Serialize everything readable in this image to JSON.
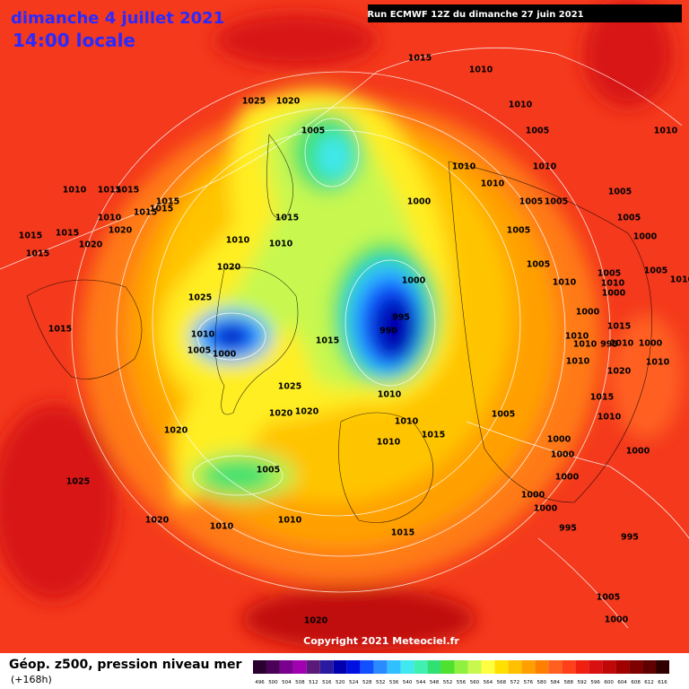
{
  "header": {
    "title": "dimanche 4 juillet 2021",
    "subtitle": "14:00 locale",
    "run": "Run ECMWF 12Z du dimanche 27 juin 2021"
  },
  "map": {
    "pressure_labels": [
      "1015",
      "1010",
      "1025",
      "1020",
      "1010",
      "1005",
      "1005",
      "1010",
      "1010",
      "1010",
      "1010",
      "1015",
      "1015",
      "1010",
      "1005",
      "1015",
      "1015",
      "1000",
      "1005",
      "1005",
      "1010",
      "1015",
      "1015",
      "1005",
      "1015",
      "1020",
      "1015",
      "1010",
      "1010",
      "1005",
      "1000",
      "1020",
      "1015",
      "1005",
      "1020",
      "1005",
      "1005",
      "1000",
      "1010",
      "1025",
      "995",
      "990",
      "1000",
      "1015",
      "1010",
      "1015",
      "1005",
      "1000",
      "1010",
      "1025",
      "1015",
      "1020",
      "1020",
      "1010",
      "1015",
      "1005",
      "1010",
      "1020",
      "1010",
      "1000",
      "1000",
      "1000",
      "1005",
      "1000",
      "1025",
      "1000",
      "1000",
      "1020",
      "1010",
      "1010",
      "995",
      "1015",
      "995",
      "1005",
      "1000",
      "1020",
      "1010",
      "1010",
      "1015",
      "995",
      "1010",
      "1000",
      "1010",
      "1020",
      "1010",
      "1010",
      "1000",
      "1010"
    ]
  },
  "footer": {
    "copyright": "Copyright 2021 Meteociel.fr",
    "legend_title": "Géop. z500, pression niveau mer",
    "lead": "(+168h)",
    "scale": {
      "values": [
        496,
        500,
        504,
        508,
        512,
        516,
        520,
        524,
        528,
        532,
        536,
        540,
        544,
        548,
        552,
        556,
        560,
        564,
        568,
        572,
        576,
        580,
        584,
        588,
        592,
        596,
        600,
        604,
        608,
        612,
        616
      ],
      "colors": [
        "#2a0030",
        "#4b0057",
        "#7a0090",
        "#a000b0",
        "#5a1a7a",
        "#2a1aa0",
        "#0000b0",
        "#0010e0",
        "#1050ff",
        "#2a8aff",
        "#30c0ff",
        "#40e8f0",
        "#40f0b0",
        "#30e070",
        "#50e030",
        "#90f040",
        "#c8f850",
        "#ffff40",
        "#ffe000",
        "#ffc000",
        "#ffa000",
        "#ff8000",
        "#ff6020",
        "#ff4018",
        "#f02010",
        "#d81010",
        "#c00808",
        "#a00000",
        "#800000",
        "#600000",
        "#300000"
      ]
    }
  }
}
